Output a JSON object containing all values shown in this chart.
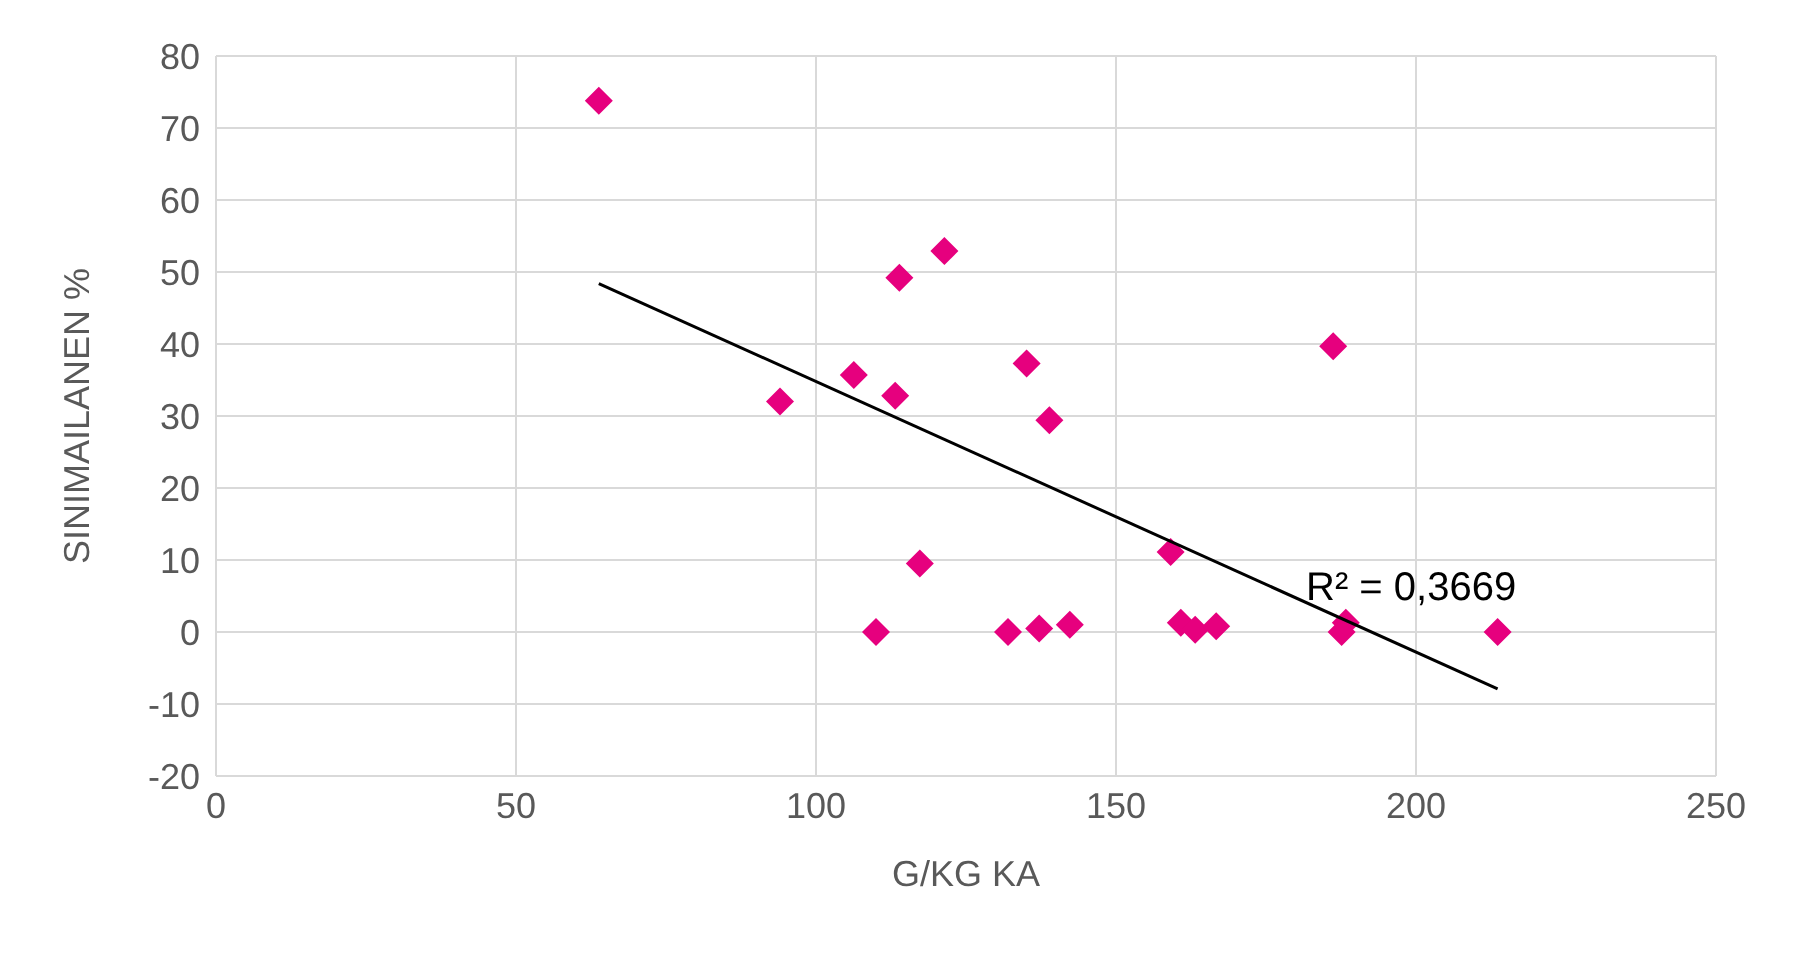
{
  "chart_data": {
    "type": "scatter",
    "xlabel": "G/KG KA",
    "ylabel": "SINIMAILANEN %",
    "xlim": [
      0,
      250
    ],
    "xticks": [
      0,
      50,
      100,
      150,
      200,
      250
    ],
    "ylim": [
      -20,
      80
    ],
    "yticks": [
      -20,
      -10,
      0,
      10,
      20,
      30,
      40,
      50,
      60,
      70,
      80
    ],
    "grid": true,
    "series": [
      {
        "marker": "diamond",
        "color": "#e6007e",
        "x": [
          63.8,
          94,
          106.3,
          113.2,
          113.9,
          121.4,
          117.3,
          110,
          132,
          137.2,
          142.3,
          135.1,
          138.9,
          159.1,
          160.8,
          163.2,
          166.7,
          186.2,
          187.6,
          188.3,
          213.6
        ],
        "values": [
          73.8,
          32,
          35.7,
          32.8,
          49.2,
          52.9,
          9.5,
          0,
          0,
          0.5,
          1,
          37.3,
          29.4,
          11.1,
          1.3,
          0.3,
          0.8,
          39.7,
          0,
          1.3,
          0
        ]
      },
      {
        "type": "line",
        "marker": "none",
        "color": "#000000",
        "x": [
          63.8,
          213.6
        ],
        "values": [
          48.4,
          -7.9
        ]
      }
    ],
    "annotations": [
      "R² = 0,3669"
    ]
  }
}
